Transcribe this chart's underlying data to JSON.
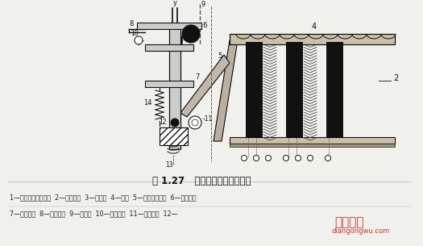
{
  "title": "图 1.27   热继电器的结构原理图",
  "caption_line1": "1—双金属片固定支点  2—双金属片  3—热元件  4—导板  5—补偿双金属片  6—常闭触点",
  "caption_line2": "7—常开触点  8—复位螺钉  9—动触点  10—复位按钮  11—调节旋钮  12—",
  "bg_color": "#f0f0ec",
  "fig_width": 5.25,
  "fig_height": 3.05,
  "watermark_text1": "电工之屋",
  "watermark_text2": "diangongwu.com"
}
